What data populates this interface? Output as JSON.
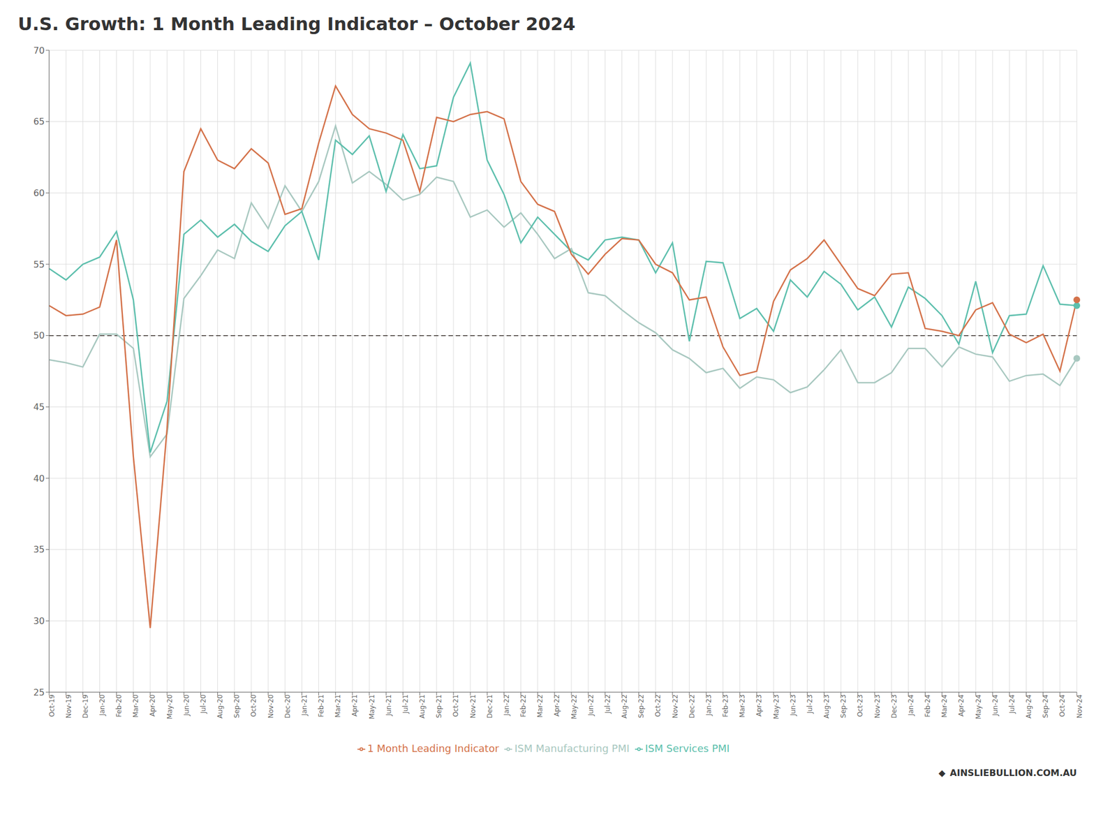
{
  "chart_data": {
    "type": "line",
    "title": "U.S. Growth: 1 Month Leading Indicator – October 2024",
    "categories": [
      "Oct-19",
      "Nov-19",
      "Dec-19",
      "Jan-20",
      "Feb-20",
      "Mar-20",
      "Apr-20",
      "May-20",
      "Jun-20",
      "Jul-20",
      "Aug-20",
      "Sep-20",
      "Oct-20",
      "Nov-20",
      "Dec-20",
      "Jan-21",
      "Feb-21",
      "Mar-21",
      "Apr-21",
      "May-21",
      "Jun-21",
      "Jul-21",
      "Aug-21",
      "Sep-21",
      "Oct-21",
      "Nov-21",
      "Dec-21",
      "Jan-22",
      "Feb-22",
      "Mar-22",
      "Apr-22",
      "May-22",
      "Jun-22",
      "Jul-22",
      "Aug-22",
      "Sep-22",
      "Oct-22",
      "Nov-22",
      "Dec-22",
      "Jan-23",
      "Feb-23",
      "Mar-23",
      "Apr-23",
      "May-23",
      "Jun-23",
      "Jul-23",
      "Aug-23",
      "Sep-23",
      "Oct-23",
      "Nov-23",
      "Dec-23",
      "Jan-24",
      "Feb-24",
      "Mar-24",
      "Apr-24",
      "May-24",
      "Jun-24",
      "Jul-24",
      "Aug-24",
      "Sep-24",
      "Oct-24",
      "Nov-24"
    ],
    "series": [
      {
        "name": "ISM Manufacturing PMI",
        "color": "#a8c8c0",
        "values": [
          48.3,
          48.1,
          47.8,
          50.1,
          50.1,
          49.1,
          41.5,
          43.1,
          52.6,
          54.2,
          56.0,
          55.4,
          59.3,
          57.5,
          60.5,
          58.7,
          60.8,
          64.7,
          60.7,
          61.5,
          60.6,
          59.5,
          59.9,
          61.1,
          60.8,
          58.3,
          58.8,
          57.6,
          58.6,
          57.1,
          55.4,
          56.1,
          53.0,
          52.8,
          51.8,
          50.9,
          50.2,
          49.0,
          48.4,
          47.4,
          47.7,
          46.3,
          47.1,
          46.9,
          46.0,
          46.4,
          47.6,
          49.0,
          46.7,
          46.7,
          47.4,
          49.1,
          49.1,
          47.8,
          49.2,
          48.7,
          48.5,
          46.8,
          47.2,
          47.3,
          46.5,
          48.4
        ]
      },
      {
        "name": "ISM Services PMI",
        "color": "#5dbfad",
        "values": [
          54.7,
          53.9,
          55.0,
          55.5,
          57.3,
          52.5,
          41.8,
          45.4,
          57.1,
          58.1,
          56.9,
          57.8,
          56.6,
          55.9,
          57.7,
          58.7,
          55.3,
          63.7,
          62.7,
          64.0,
          60.1,
          64.1,
          61.7,
          61.9,
          66.7,
          69.1,
          62.3,
          59.9,
          56.5,
          58.3,
          57.1,
          55.9,
          55.3,
          56.7,
          56.9,
          56.7,
          54.4,
          56.5,
          49.6,
          55.2,
          55.1,
          51.2,
          51.9,
          50.3,
          53.9,
          52.7,
          54.5,
          53.6,
          51.8,
          52.7,
          50.6,
          53.4,
          52.6,
          51.4,
          49.4,
          53.8,
          48.8,
          51.4,
          51.5,
          54.9,
          52.2,
          52.1
        ]
      },
      {
        "name": "1 Month Leading Indicator",
        "color": "#d4724a",
        "values": [
          52.1,
          51.4,
          51.5,
          52.0,
          56.7,
          41.5,
          29.5,
          43.5,
          61.5,
          64.5,
          62.3,
          61.7,
          63.1,
          62.1,
          58.5,
          58.9,
          63.5,
          67.5,
          65.5,
          64.5,
          64.2,
          63.7,
          60.1,
          65.3,
          65.0,
          65.5,
          65.7,
          65.2,
          60.8,
          59.2,
          58.7,
          55.7,
          54.3,
          55.7,
          56.8,
          56.7,
          55.0,
          54.4,
          52.5,
          52.7,
          49.2,
          47.2,
          47.5,
          52.4,
          54.6,
          55.4,
          56.7,
          55.0,
          53.3,
          52.8,
          54.3,
          54.4,
          50.5,
          50.3,
          50.0,
          51.8,
          52.3,
          50.1,
          49.5,
          50.1,
          47.5,
          52.5
        ]
      }
    ],
    "ylim": [
      25,
      70
    ],
    "yticks": [
      25,
      30,
      35,
      40,
      45,
      50,
      55,
      60,
      65,
      70
    ],
    "reference_line": 50,
    "grid": true,
    "legend": "bottom",
    "annotations": [
      "◆",
      "AINSLIEBULLION.COM.AU"
    ]
  }
}
